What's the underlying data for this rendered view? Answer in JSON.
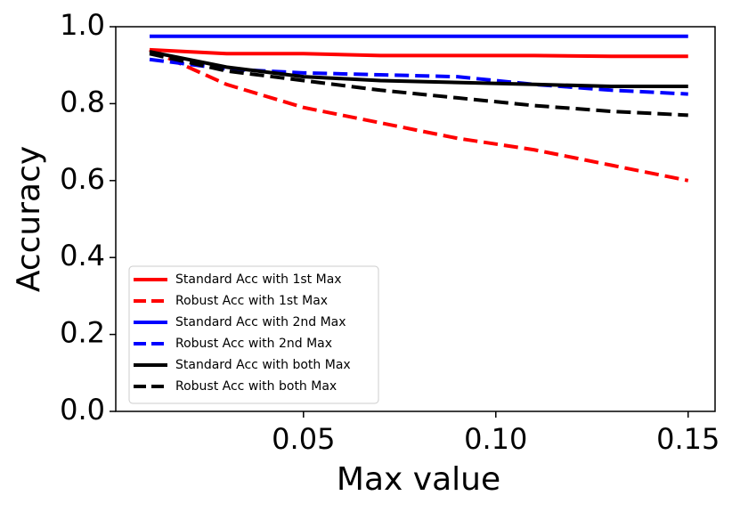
{
  "chart_data": {
    "type": "line",
    "x_label": "Max value",
    "y_label": "Accuracy",
    "x": [
      0.01,
      0.03,
      0.05,
      0.07,
      0.09,
      0.11,
      0.13,
      0.15
    ],
    "series": [
      {
        "name": "Standard Acc with 1st Max",
        "color": "#ff0000",
        "dash": false,
        "values": [
          0.94,
          0.93,
          0.93,
          0.925,
          0.925,
          0.925,
          0.923,
          0.923
        ]
      },
      {
        "name": "Robust Acc with 1st Max",
        "color": "#ff0000",
        "dash": true,
        "values": [
          0.94,
          0.85,
          0.79,
          0.75,
          0.71,
          0.68,
          0.64,
          0.6
        ]
      },
      {
        "name": "Standard Acc with 2nd Max",
        "color": "#0000ff",
        "dash": false,
        "values": [
          0.975,
          0.975,
          0.975,
          0.975,
          0.975,
          0.975,
          0.975,
          0.975
        ]
      },
      {
        "name": "Robust Acc with 2nd Max",
        "color": "#0000ff",
        "dash": true,
        "values": [
          0.915,
          0.89,
          0.88,
          0.875,
          0.87,
          0.85,
          0.835,
          0.825
        ]
      },
      {
        "name": "Standard Acc with both Max",
        "color": "#000000",
        "dash": false,
        "values": [
          0.935,
          0.895,
          0.87,
          0.86,
          0.855,
          0.85,
          0.845,
          0.845
        ]
      },
      {
        "name": "Robust Acc with both Max",
        "color": "#000000",
        "dash": true,
        "values": [
          0.93,
          0.885,
          0.86,
          0.835,
          0.815,
          0.795,
          0.78,
          0.77
        ]
      }
    ],
    "xlim": [
      0.0012,
      0.157
    ],
    "ylim": [
      0,
      1
    ],
    "xticks": [
      0.05,
      {
        "value": 0.1,
        "label": "0.10"
      },
      0.15
    ],
    "yticks": [
      {
        "value": 0,
        "label": "0.0"
      },
      0.2,
      0.4,
      0.6,
      0.8,
      {
        "value": 1,
        "label": "1.0"
      }
    ],
    "legend": "lower left",
    "grid": false
  }
}
